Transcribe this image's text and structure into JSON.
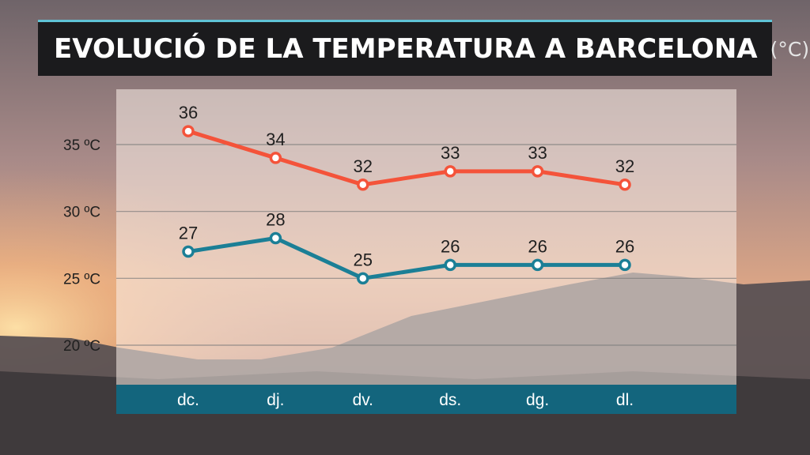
{
  "title": "EVOLUCIÓ DE LA TEMPERATURA A BARCELONA",
  "title_unit": "(°C)",
  "colors": {
    "max_series": "#f4533a",
    "min_series": "#1b7f96",
    "axis_band": "#13657d",
    "title_bg": "#1b1b1d",
    "accent_line": "#5fc3d6"
  },
  "chart_data": {
    "type": "line",
    "categories": [
      "dc.",
      "dj.",
      "dv.",
      "ds.",
      "dg.",
      "dl."
    ],
    "series": [
      {
        "values": [
          36,
          34,
          32,
          33,
          33,
          32
        ],
        "color": "#f4533a"
      },
      {
        "values": [
          27,
          28,
          25,
          26,
          26,
          26
        ],
        "color": "#1b7f96"
      }
    ],
    "y_ticks": [
      35,
      30,
      25,
      20
    ],
    "y_tick_labels": [
      "35 ºC",
      "30 ºC",
      "25 ºC",
      "20 ºC"
    ],
    "ylim": [
      17,
      40
    ],
    "grid": true,
    "data_labels": true
  }
}
